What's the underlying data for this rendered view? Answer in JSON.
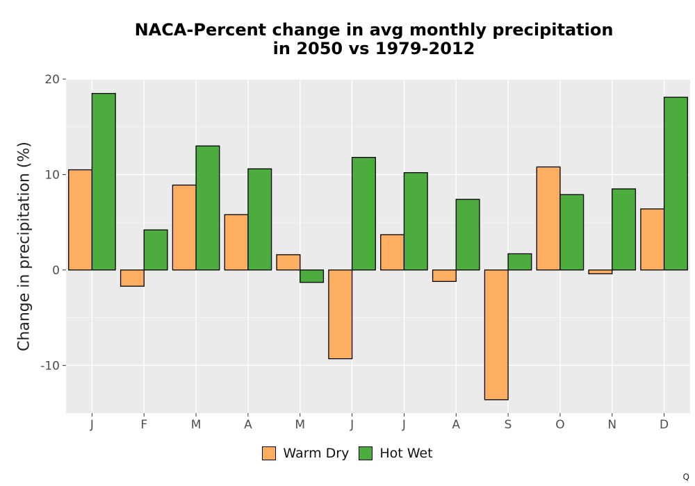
{
  "chart_data": {
    "type": "bar",
    "title": "NACA-Percent change in avg monthly precipitation in 2050 vs 1979-2012",
    "title_lines": [
      "NACA-Percent change in avg monthly precipitation",
      "in 2050 vs 1979-2012"
    ],
    "xlabel": "",
    "ylabel": "Change in precipitation (%)",
    "categories": [
      "J",
      "F",
      "M",
      "A",
      "M",
      "J",
      "J",
      "A",
      "S",
      "O",
      "N",
      "D"
    ],
    "ylim": [
      -15,
      20
    ],
    "yticks": [
      -10,
      0,
      10,
      20
    ],
    "ytick_labels": [
      "-10",
      "0",
      "10",
      "20"
    ],
    "grid": true,
    "legend_position": "bottom",
    "series": [
      {
        "name": "Warm Dry",
        "color": "#FDAE61",
        "values": [
          10.5,
          -1.7,
          8.9,
          5.8,
          1.6,
          -9.3,
          3.7,
          -1.2,
          -13.6,
          10.8,
          -0.4,
          6.4
        ]
      },
      {
        "name": "Hot Wet",
        "color": "#4DAC3E",
        "values": [
          18.5,
          4.2,
          13.0,
          10.6,
          -1.3,
          11.8,
          10.2,
          7.4,
          1.7,
          7.9,
          8.5,
          18.1
        ]
      }
    ]
  },
  "corner_mark": "Q"
}
